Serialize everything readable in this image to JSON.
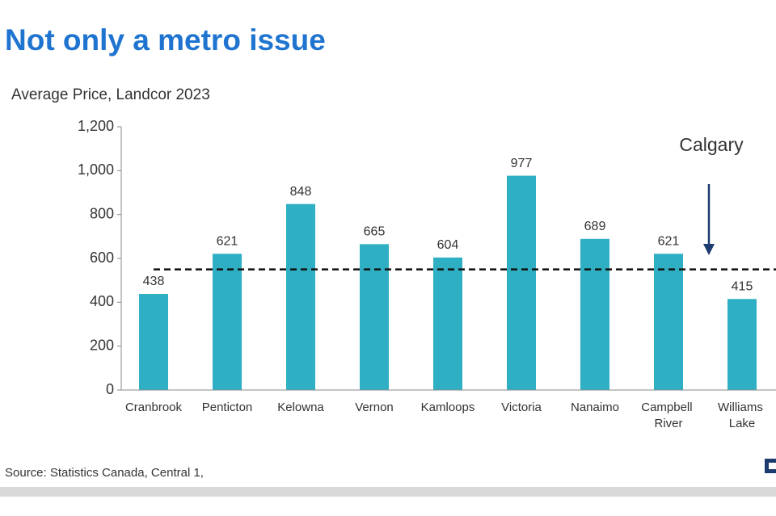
{
  "chart_data": {
    "type": "bar",
    "title": "Not only a metro issue",
    "subtitle": "Average Price, Landcor 2023",
    "categories": [
      "Cranbrook",
      "Penticton",
      "Kelowna",
      "Vernon",
      "Kamloops",
      "Victoria",
      "Nanaimo",
      "Campbell River",
      "Williams Lake"
    ],
    "values": [
      438,
      621,
      848,
      665,
      604,
      977,
      689,
      621,
      415
    ],
    "color": "#2eafc3",
    "ylim": [
      0,
      1200
    ],
    "yticks": [
      0,
      200,
      400,
      600,
      800,
      {
        "value": 1000,
        "label": "1,000"
      },
      {
        "value": 1200,
        "label": "1,200"
      }
    ],
    "reference_line": {
      "label": "Calgary",
      "value": 550
    },
    "source": "Source: Statistics Canada, Central 1,"
  }
}
